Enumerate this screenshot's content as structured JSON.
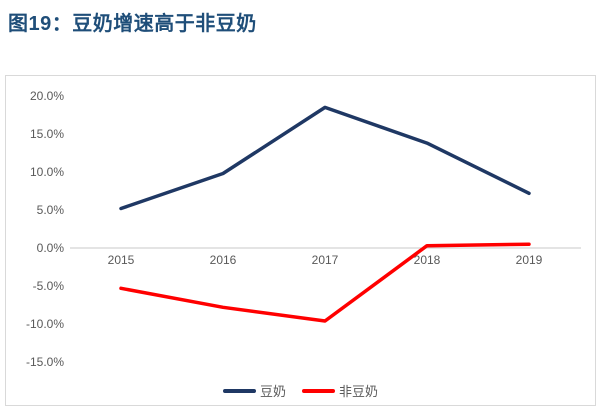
{
  "title": "图19：豆奶增速高于非豆奶",
  "colors": {
    "title": "#1f4e79",
    "axis_text": "#595959",
    "frame_border": "#d9d9d9",
    "zero_line": "#c9c9c9",
    "background": "#ffffff"
  },
  "chart_data": {
    "type": "line",
    "title": "图19：豆奶增速高于非豆奶",
    "categories": [
      "2015",
      "2016",
      "2017",
      "2018",
      "2019"
    ],
    "series": [
      {
        "name": "豆奶",
        "color": "#1f3864",
        "values": [
          5.2,
          9.8,
          18.5,
          13.8,
          7.2
        ]
      },
      {
        "name": "非豆奶",
        "color": "#ff0000",
        "values": [
          -5.3,
          -7.8,
          -9.6,
          0.3,
          0.5
        ]
      }
    ],
    "xlabel": "",
    "ylabel": "",
    "y_ticks": [
      20,
      15,
      10,
      5,
      0,
      -5,
      -10,
      -15
    ],
    "y_tick_labels": [
      "20.0%",
      "15.0%",
      "10.0%",
      "5.0%",
      "0.0%",
      "-5.0%",
      "-10.0%",
      "-15.0%"
    ],
    "ylim": [
      -17.5,
      22.5
    ],
    "grid": "zero-axis-only",
    "legend_position": "bottom-center"
  }
}
